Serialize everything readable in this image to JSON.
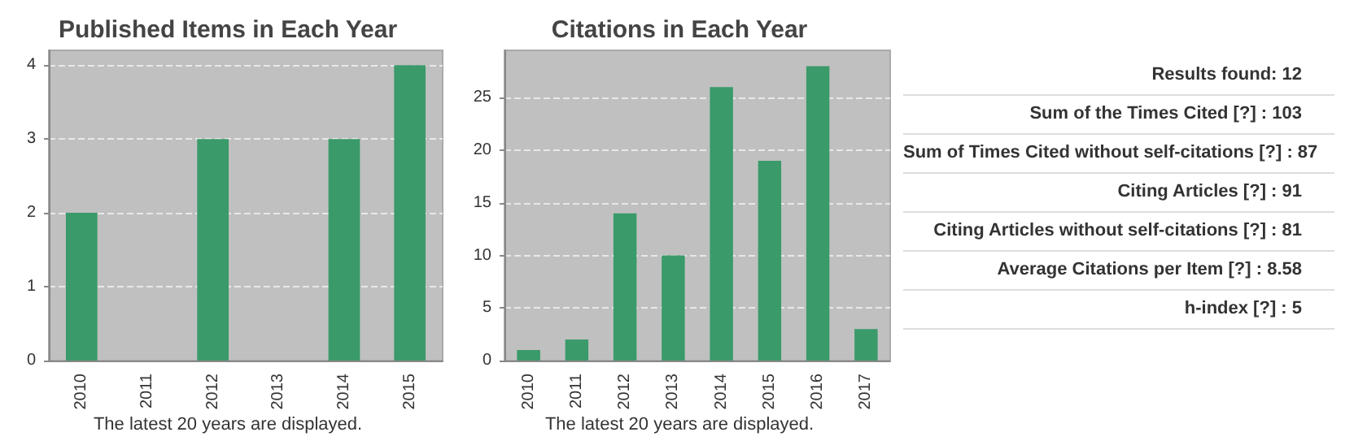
{
  "chart_data": [
    {
      "type": "bar",
      "title": "Published Items in Each Year",
      "categories": [
        "2010",
        "2011",
        "2012",
        "2013",
        "2014",
        "2015"
      ],
      "values": [
        2,
        0,
        3,
        0,
        3,
        4
      ],
      "color": "#3a9a6a",
      "ylim": [
        0,
        4.2
      ],
      "yticks": [
        0,
        1,
        2,
        3,
        4
      ],
      "grid": "y",
      "annotations": [
        "The latest 20 years are displayed."
      ]
    },
    {
      "type": "bar",
      "title": "Citations in Each Year",
      "categories": [
        "2010",
        "2011",
        "2012",
        "2013",
        "2014",
        "2015",
        "2016",
        "2017"
      ],
      "values": [
        1,
        2,
        14,
        10,
        26,
        19,
        28,
        3
      ],
      "color": "#3a9a6a",
      "ylim": [
        0,
        29.5
      ],
      "yticks": [
        0,
        5,
        10,
        15,
        20,
        25
      ],
      "grid": "y",
      "annotations": [
        "The latest 20 years are displayed."
      ]
    },
    {
      "type": "other",
      "annotations": [
        "Results found:  12",
        "Sum of the Times Cited [?] :  103",
        "Sum of Times Cited without self-citations [?] :  87",
        "Citing Articles [?] :  91",
        "Citing Articles without self-citations [?] :  81",
        "Average Citations per Item [?] :  8.58",
        "h-index [?] :  5"
      ]
    }
  ]
}
